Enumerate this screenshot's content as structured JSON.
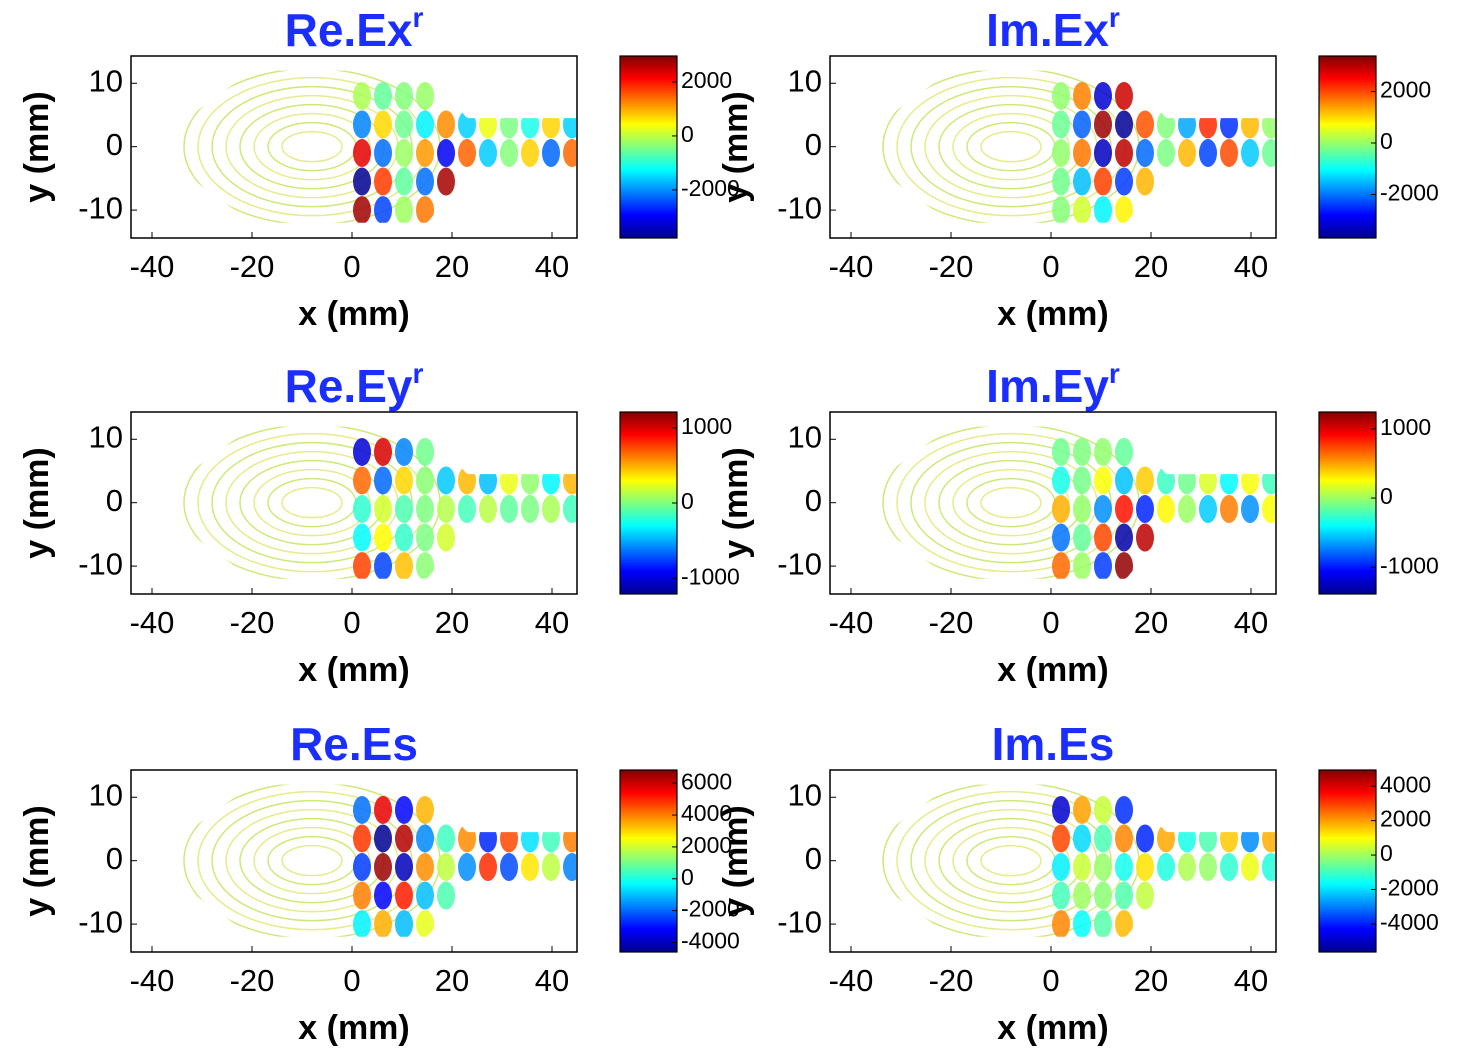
{
  "chart_data": [
    {
      "type": "contour",
      "title": "Re.Ex",
      "title_sup": "r",
      "xlabel": "x (mm)",
      "ylabel": "y (mm)",
      "xlim": [
        -44.2,
        45
      ],
      "ylim": [
        -14.4,
        14.3
      ],
      "xticks": [
        -40,
        -20,
        0,
        20,
        40
      ],
      "yticks": [
        -10,
        0,
        10
      ],
      "colormap": "jet",
      "clim": [
        -3780,
        2960
      ],
      "cticks": [
        -2000,
        0,
        2000
      ]
    },
    {
      "type": "contour",
      "title": "Im.Ex",
      "title_sup": "r",
      "xlabel": "x (mm)",
      "ylabel": "y (mm)",
      "xlim": [
        -44.2,
        45
      ],
      "ylim": [
        -14.4,
        14.3
      ],
      "xticks": [
        -40,
        -20,
        0,
        20,
        40
      ],
      "yticks": [
        -10,
        0,
        10
      ],
      "colormap": "jet",
      "clim": [
        -3690,
        3380
      ],
      "cticks": [
        -2000,
        0,
        2000
      ]
    },
    {
      "type": "contour",
      "title": "Re.Ey",
      "title_sup": "r",
      "xlabel": "x (mm)",
      "ylabel": "y (mm)",
      "xlim": [
        -44.2,
        45
      ],
      "ylim": [
        -14.4,
        14.3
      ],
      "xticks": [
        -40,
        -20,
        0,
        20,
        40
      ],
      "yticks": [
        -10,
        0,
        10
      ],
      "colormap": "jet",
      "clim": [
        -1210,
        1210
      ],
      "cticks": [
        -1000,
        0,
        1000
      ]
    },
    {
      "type": "contour",
      "title": "Im.Ey",
      "title_sup": "r",
      "xlabel": "x (mm)",
      "ylabel": "y (mm)",
      "xlim": [
        -44.2,
        45
      ],
      "ylim": [
        -14.4,
        14.3
      ],
      "xticks": [
        -40,
        -20,
        0,
        20,
        40
      ],
      "yticks": [
        -10,
        0,
        10
      ],
      "colormap": "jet",
      "clim": [
        -1386,
        1243
      ],
      "cticks": [
        -1000,
        0,
        1000
      ]
    },
    {
      "type": "contour",
      "title": "Re.Es",
      "xlabel": "x (mm)",
      "ylabel": "y (mm)",
      "xlim": [
        -44.2,
        45
      ],
      "ylim": [
        -14.4,
        14.3
      ],
      "xticks": [
        -40,
        -20,
        0,
        20,
        40
      ],
      "yticks": [
        -10,
        0,
        10
      ],
      "colormap": "jet",
      "clim": [
        -4600,
        6830
      ],
      "cticks": [
        -4000,
        -2000,
        0,
        2000,
        4000,
        6000
      ]
    },
    {
      "type": "contour",
      "title": "Im.Es",
      "xlabel": "x (mm)",
      "ylabel": "y (mm)",
      "xlim": [
        -44.2,
        45
      ],
      "ylim": [
        -14.4,
        14.3
      ],
      "xticks": [
        -40,
        -20,
        0,
        20,
        40
      ],
      "yticks": [
        -10,
        0,
        10
      ],
      "colormap": "jet",
      "clim": [
        -5630,
        4940
      ],
      "cticks": [
        -4000,
        -2000,
        0,
        2000,
        4000
      ]
    }
  ]
}
